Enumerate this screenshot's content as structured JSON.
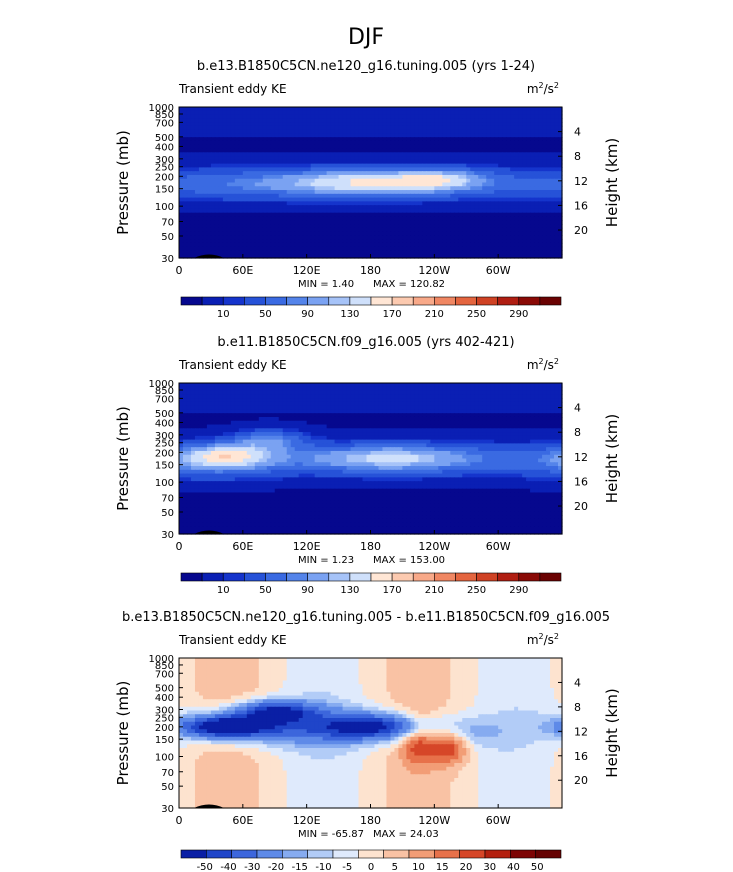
{
  "page_title": "DJF",
  "chart_data": [
    {
      "type": "heatmap",
      "title": "b.e13.B1850C5CN.ne120_g16.tuning.005 (yrs 1-24)",
      "subtitle_left": "Transient eddy KE",
      "units": "m2/s2",
      "ylabel": "Pressure (mb)",
      "ylabel_right": "Height (km)",
      "x_ticks": [
        "0",
        "60E",
        "120E",
        "180",
        "120W",
        "60W"
      ],
      "y_ticks": [
        "30",
        "50",
        "70",
        "100",
        "150",
        "200",
        "250",
        "300",
        "400",
        "500",
        "700",
        "850",
        "1000"
      ],
      "y_ticks_right": [
        "20",
        "16",
        "12",
        "8",
        "4"
      ],
      "min_label": "MIN = 1.40",
      "max_label": "MAX = 120.82",
      "min": 1.4,
      "max": 120.82,
      "colorbar_levels": [
        10,
        20,
        30,
        40,
        50,
        60,
        70,
        80,
        90,
        100,
        110,
        120,
        130,
        140,
        150,
        160,
        170,
        180,
        190,
        200,
        210,
        220,
        230,
        240,
        250,
        260,
        270,
        280,
        290
      ],
      "colorbar_labels": [
        "10",
        "50",
        "90",
        "130",
        "170",
        "210",
        "250",
        "290"
      ],
      "features": [
        {
          "x": 190,
          "p": 170,
          "value": 95,
          "sx": 55,
          "sy": 45
        },
        {
          "x": 245,
          "p": 160,
          "value": 85,
          "sx": 30,
          "sy": 35
        },
        {
          "x": 130,
          "p": 175,
          "value": 60,
          "sx": 55,
          "sy": 45
        },
        {
          "x": 40,
          "p": 180,
          "value": 40,
          "sx": 40,
          "sy": 55
        }
      ]
    },
    {
      "type": "heatmap",
      "title": "b.e11.B1850C5CN.f09_g16.005 (yrs 402-421)",
      "subtitle_left": "Transient eddy KE",
      "units": "m2/s2",
      "ylabel": "Pressure (mb)",
      "ylabel_right": "Height (km)",
      "x_ticks": [
        "0",
        "60E",
        "120E",
        "180",
        "120W",
        "60W"
      ],
      "y_ticks": [
        "30",
        "50",
        "70",
        "100",
        "150",
        "200",
        "250",
        "300",
        "400",
        "500",
        "700",
        "850",
        "1000"
      ],
      "y_ticks_right": [
        "20",
        "16",
        "12",
        "8",
        "4"
      ],
      "min_label": "MIN = 1.23",
      "max_label": "MAX = 153.00",
      "min": 1.23,
      "max": 153.0,
      "colorbar_levels": [
        10,
        20,
        30,
        40,
        50,
        60,
        70,
        80,
        90,
        100,
        110,
        120,
        130,
        140,
        150,
        160,
        170,
        180,
        190,
        200,
        210,
        220,
        230,
        240,
        250,
        260,
        270,
        280,
        290
      ],
      "colorbar_labels": [
        "10",
        "50",
        "90",
        "130",
        "170",
        "210",
        "250",
        "290"
      ],
      "features": [
        {
          "x": 45,
          "p": 160,
          "value": 110,
          "sx": 30,
          "sy": 40
        },
        {
          "x": 85,
          "p": 110,
          "value": 95,
          "sx": 25,
          "sy": 35
        },
        {
          "x": 200,
          "p": 170,
          "value": 100,
          "sx": 55,
          "sy": 45
        },
        {
          "x": 30,
          "p": 200,
          "value": 60,
          "sx": 40,
          "sy": 60
        }
      ]
    },
    {
      "type": "heatmap",
      "title": "b.e13.B1850C5CN.ne120_g16.tuning.005 - b.e11.B1850C5CN.f09_g16.005",
      "subtitle_left": "Transient eddy KE",
      "units": "m2/s2",
      "ylabel": "Pressure (mb)",
      "ylabel_right": "Height (km)",
      "x_ticks": [
        "0",
        "60E",
        "120E",
        "180",
        "120W",
        "60W"
      ],
      "y_ticks": [
        "30",
        "50",
        "70",
        "100",
        "150",
        "200",
        "250",
        "300",
        "400",
        "500",
        "700",
        "850",
        "1000"
      ],
      "y_ticks_right": [
        "20",
        "16",
        "12",
        "8",
        "4"
      ],
      "min_label": "MIN = -65.87",
      "max_label": "MAX = 24.03",
      "min": -65.87,
      "max": 24.03,
      "colorbar_levels": [
        -50,
        -40,
        -30,
        -20,
        -15,
        -10,
        -5,
        0,
        5,
        10,
        15,
        20,
        30,
        40,
        50
      ],
      "colorbar_labels": [
        "-50",
        "-40",
        "-30",
        "-20",
        "-15",
        "-10",
        "-5",
        "0",
        "5",
        "10",
        "15",
        "20",
        "30",
        "40",
        "50"
      ],
      "features": [
        {
          "x": 45,
          "p": 150,
          "value": -60,
          "sx": 28,
          "sy": 35
        },
        {
          "x": 90,
          "p": 105,
          "value": -45,
          "sx": 25,
          "sy": 35
        },
        {
          "x": 185,
          "p": 150,
          "value": -40,
          "sx": 35,
          "sy": 40
        },
        {
          "x": 270,
          "p": 170,
          "value": -12,
          "sx": 25,
          "sy": 50
        },
        {
          "x": 225,
          "p": 200,
          "value": 20,
          "sx": 12,
          "sy": 80
        },
        {
          "x": 255,
          "p": 230,
          "value": 22,
          "sx": 12,
          "sy": 60
        },
        {
          "x": 110,
          "p": 150,
          "value": -25,
          "sx": 70,
          "sy": 60
        }
      ]
    }
  ]
}
